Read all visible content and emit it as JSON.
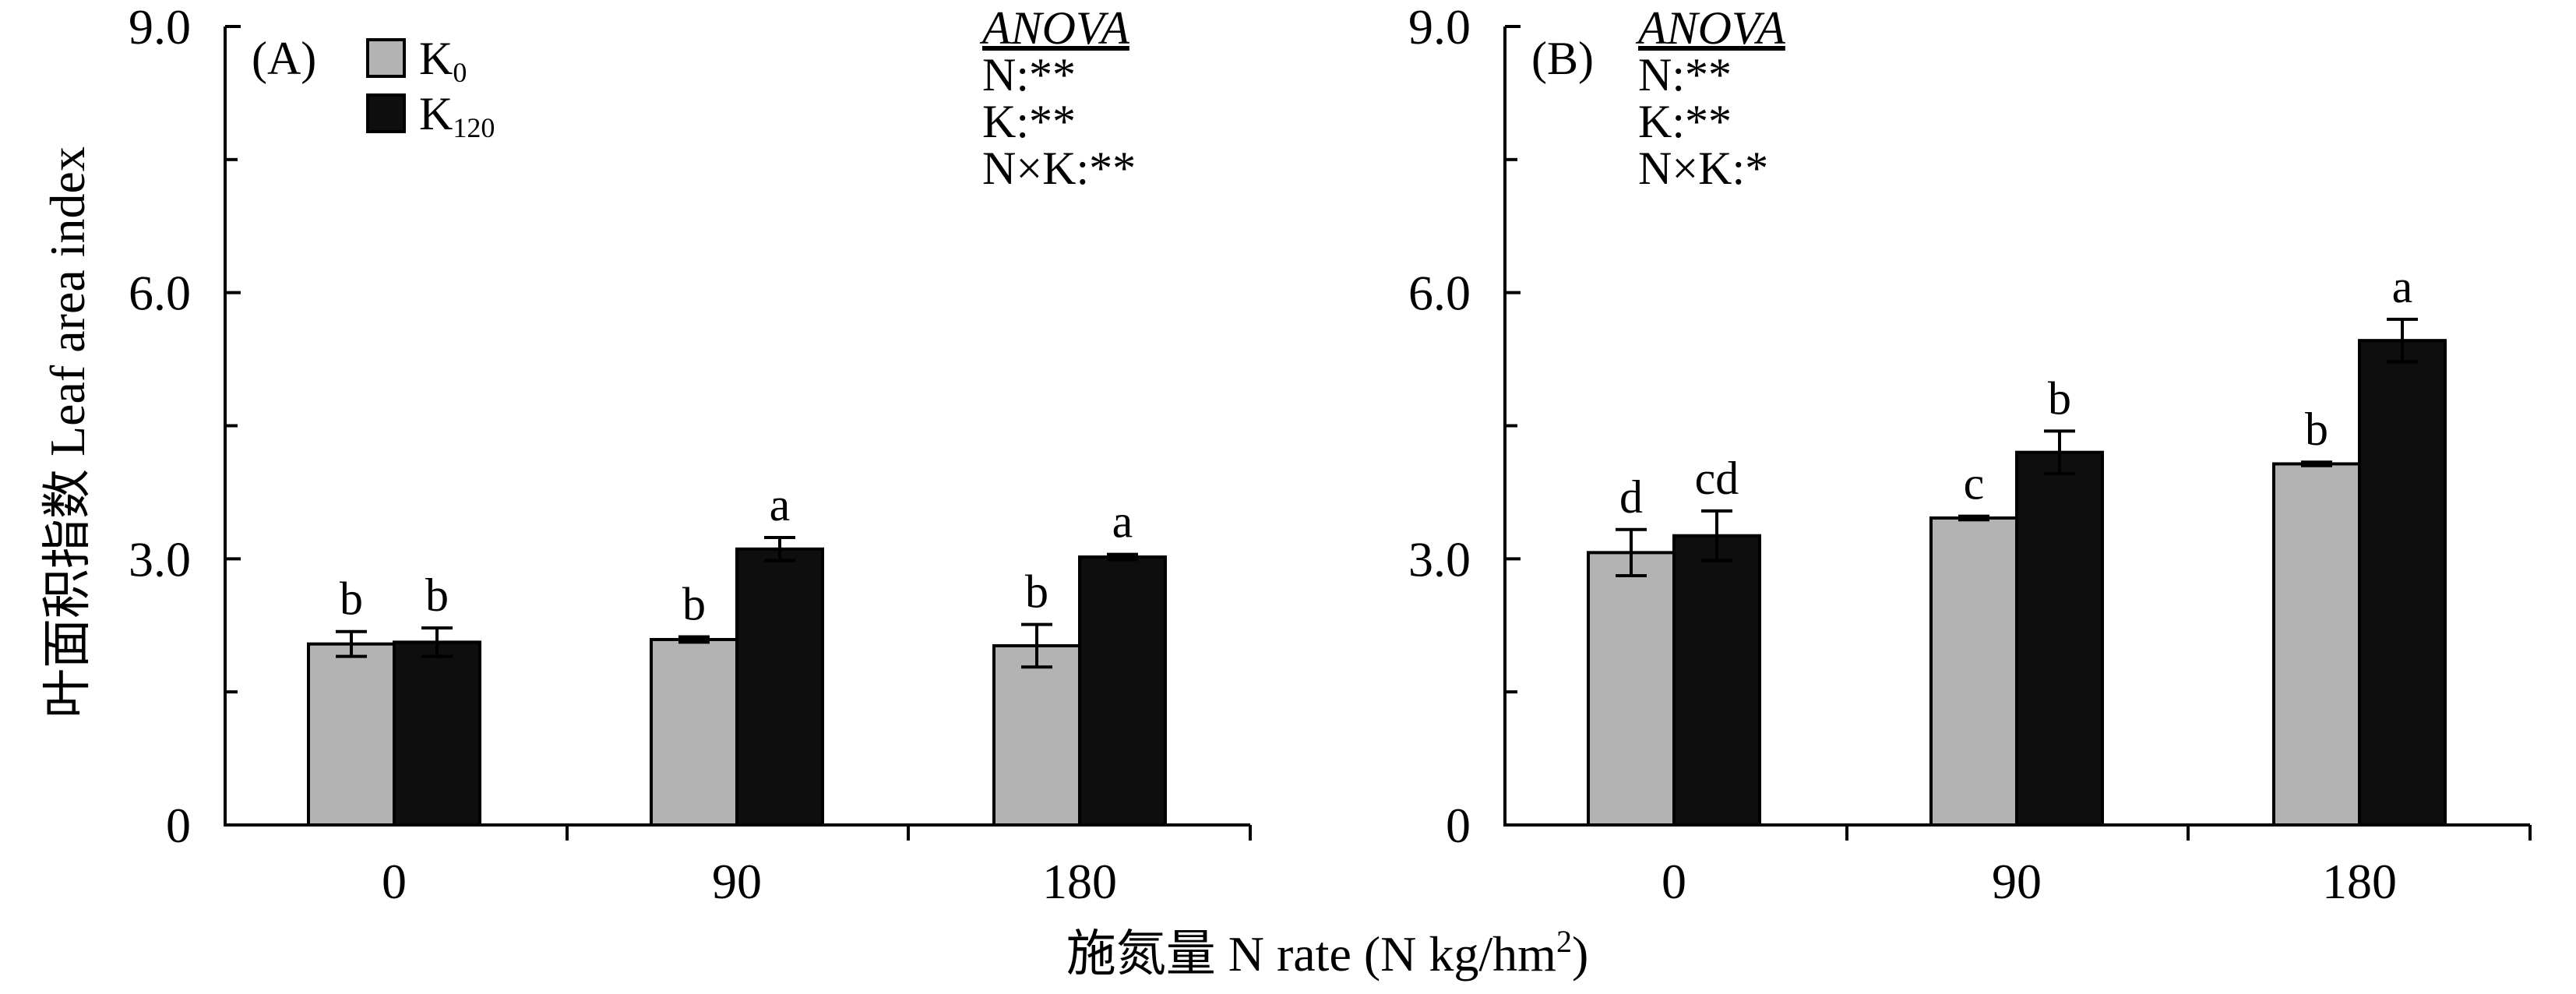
{
  "ylabel": "叶面积指数  Leaf area index",
  "xlabel": {
    "main": "施氮量 N rate (N kg/hm",
    "sup": "2",
    "tail": ")"
  },
  "colors": {
    "axis": "#000000",
    "bar_outline": "#000000"
  },
  "chart_data": [
    {
      "type": "bar",
      "panel_label": "(A)",
      "categories": [
        "0",
        "90",
        "180"
      ],
      "ylim": [
        0,
        9
      ],
      "yticks": [
        {
          "value": 0,
          "label": "0"
        },
        {
          "value": 3,
          "label": "3.0"
        },
        {
          "value": 6,
          "label": "6.0"
        },
        {
          "value": 9,
          "label": "9.0"
        }
      ],
      "minor_tick_step": 1.5,
      "grid": false,
      "legend": "top-left",
      "series": [
        {
          "label": "K",
          "subscript": "0",
          "color": "#b3b3b3",
          "values": [
            2.04,
            2.09,
            2.02
          ],
          "errors": [
            0.14,
            0.03,
            0.24
          ],
          "letters": [
            "b",
            "b",
            "b"
          ]
        },
        {
          "label": "K",
          "subscript": "120",
          "color": "#0e0e0e",
          "values": [
            2.06,
            3.11,
            3.02
          ],
          "errors": [
            0.16,
            0.13,
            0.03
          ],
          "letters": [
            "b",
            "a",
            "a"
          ]
        }
      ],
      "anova": {
        "title": "ANOVA",
        "lines": [
          "N:**",
          "K:**",
          "N×K:**"
        ]
      }
    },
    {
      "type": "bar",
      "panel_label": "(B)",
      "categories": [
        "0",
        "90",
        "180"
      ],
      "ylim": [
        0,
        9
      ],
      "yticks": [
        {
          "value": 0,
          "label": "0"
        },
        {
          "value": 3,
          "label": "3.0"
        },
        {
          "value": 6,
          "label": "6.0"
        },
        {
          "value": 9,
          "label": "9.0"
        }
      ],
      "minor_tick_step": 1.5,
      "grid": false,
      "legend": "none",
      "series": [
        {
          "color": "#b3b3b3",
          "values": [
            3.07,
            3.46,
            4.07
          ],
          "errors": [
            0.26,
            0.02,
            0.02
          ],
          "letters": [
            "d",
            "c",
            "b"
          ]
        },
        {
          "color": "#0e0e0e",
          "values": [
            3.26,
            4.2,
            5.46
          ],
          "errors": [
            0.28,
            0.24,
            0.24
          ],
          "letters": [
            "cd",
            "b",
            "a"
          ]
        }
      ],
      "anova": {
        "title": "ANOVA",
        "lines": [
          "N:**",
          "K:**",
          "N×K:*"
        ]
      }
    }
  ]
}
